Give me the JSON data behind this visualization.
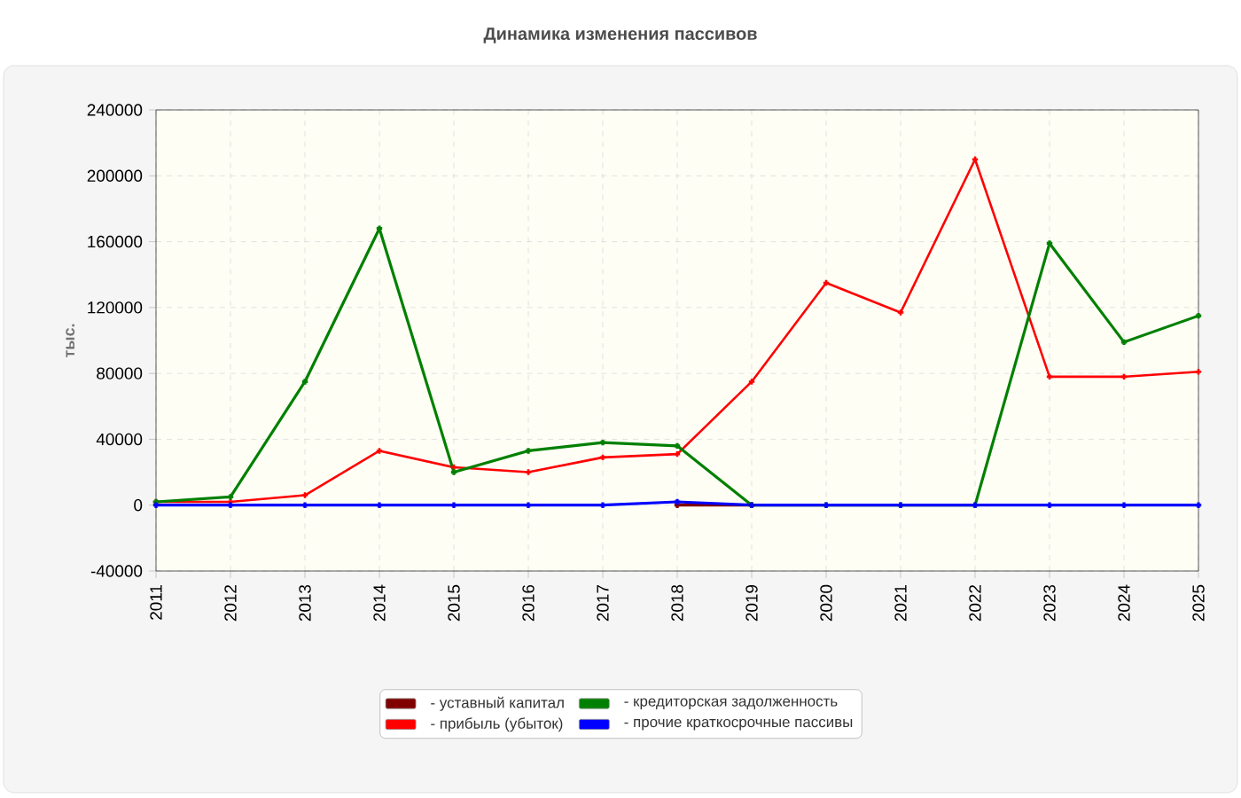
{
  "chart_data": {
    "type": "line",
    "title": "Динамика изменения пассивов",
    "ylabel": "тыс.",
    "x": [
      2011,
      2012,
      2013,
      2014,
      2015,
      2016,
      2017,
      2018,
      2019,
      2020,
      2021,
      2022,
      2023,
      2024,
      2025
    ],
    "xlim": [
      2011,
      2025
    ],
    "xticks": [
      2011,
      2012,
      2013,
      2014,
      2015,
      2016,
      2017,
      2018,
      2019,
      2020,
      2021,
      2022,
      2023,
      2024,
      2025
    ],
    "ylim": [
      -40000,
      240000
    ],
    "yticks": [
      -40000,
      0,
      40000,
      80000,
      120000,
      160000,
      200000,
      240000
    ],
    "grid": true,
    "legend": "bottom",
    "marker": "cross",
    "line_style": "solid",
    "series": [
      {
        "name": "- уставный капитал",
        "color": "#800000",
        "values": [
          null,
          null,
          null,
          null,
          null,
          null,
          null,
          0,
          0,
          null,
          null,
          null,
          null,
          null,
          null
        ]
      },
      {
        "name": "- прибыль (убыток)",
        "color": "#ff0000",
        "values": [
          2000,
          2000,
          6000,
          33000,
          23000,
          20000,
          29000,
          31000,
          75000,
          135000,
          117000,
          210000,
          78000,
          78000,
          81000
        ]
      },
      {
        "name": "- кредиторская задолженность",
        "color": "#008000",
        "values": [
          2000,
          5000,
          75000,
          168000,
          20000,
          33000,
          38000,
          36000,
          0,
          0,
          0,
          0,
          159000,
          99000,
          115000
        ]
      },
      {
        "name": "- прочие краткосрочные пассивы",
        "color": "#0000ff",
        "values": [
          0,
          0,
          0,
          0,
          0,
          0,
          0,
          2000,
          0,
          0,
          0,
          0,
          0,
          0,
          0
        ]
      }
    ]
  }
}
